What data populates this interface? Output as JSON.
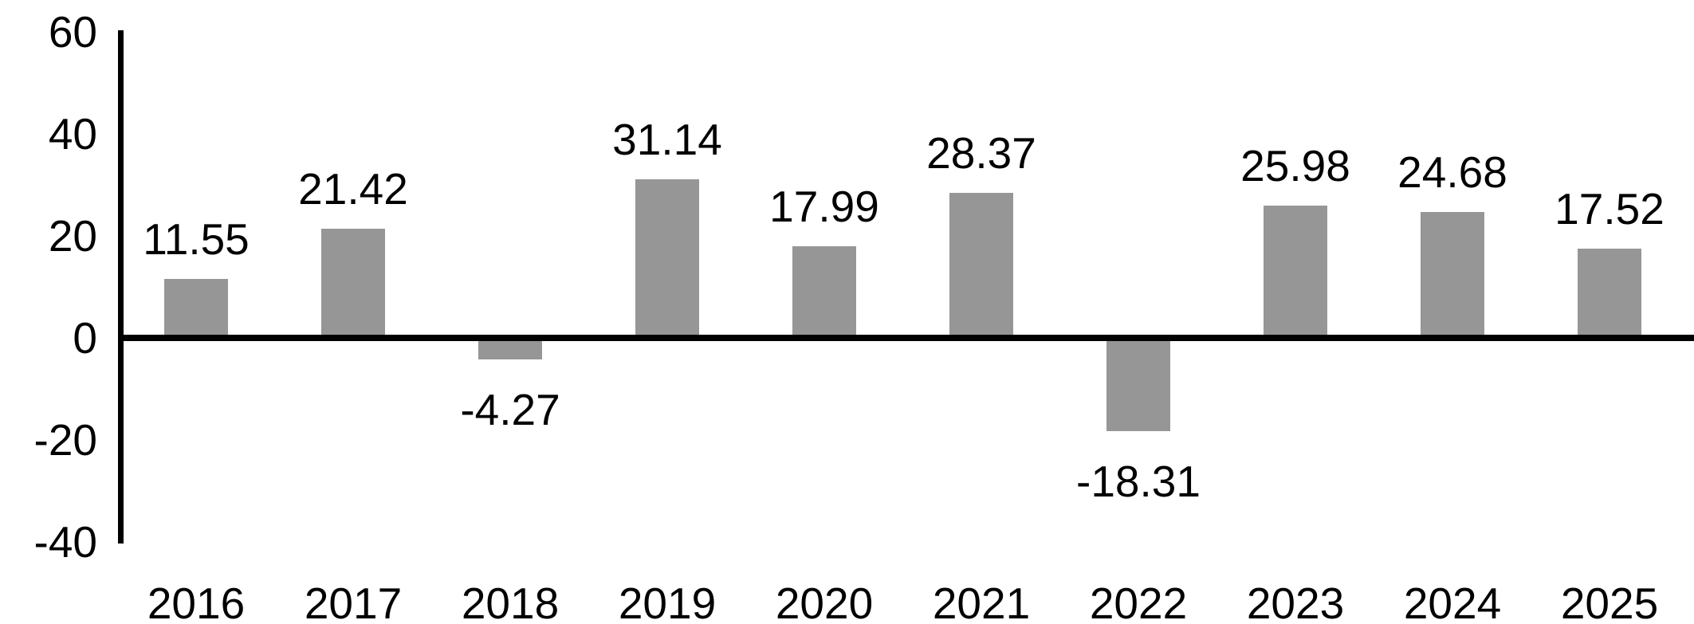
{
  "chart_data": {
    "type": "bar",
    "title": "",
    "xlabel": "",
    "ylabel": "",
    "categories": [
      "2016",
      "2017",
      "2018",
      "2019",
      "2020",
      "2021",
      "2022",
      "2023",
      "2024",
      "2025"
    ],
    "values": [
      11.55,
      21.42,
      -4.27,
      31.14,
      17.99,
      28.37,
      -18.31,
      25.98,
      24.68,
      17.52
    ],
    "value_labels": [
      "11.55",
      "21.42",
      "-4.27",
      "31.14",
      "17.99",
      "28.37",
      "-18.31",
      "25.98",
      "24.68",
      "17.52"
    ],
    "yticks": [
      60,
      40,
      20,
      0,
      -20,
      -40
    ],
    "ytick_labels": [
      "60",
      "40",
      "20",
      "0",
      "-20",
      "-40"
    ],
    "ylim": [
      -40,
      60
    ],
    "grid": false,
    "legend": null,
    "bar_color": "#969696",
    "axis_color": "#000000",
    "text_color": "#000000"
  }
}
